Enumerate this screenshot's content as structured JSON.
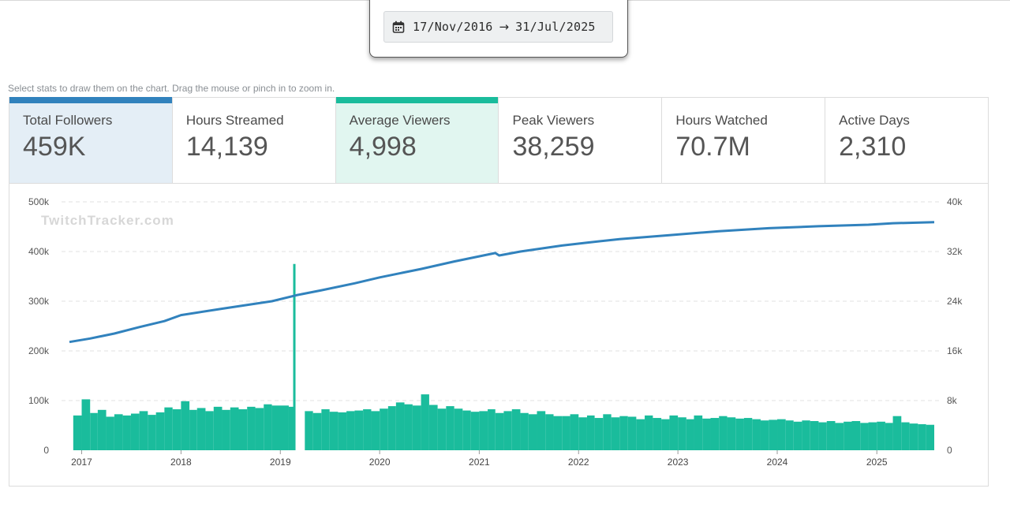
{
  "date_range": {
    "start": "17/Nov/2016",
    "arrow": "→",
    "end": "31/Jul/2025"
  },
  "hint": "Select stats to draw them on the chart. Drag the mouse or pinch in to zoom in.",
  "stats": [
    {
      "label": "Total Followers",
      "value": "459K",
      "selected": true,
      "color": "#3182bd"
    },
    {
      "label": "Hours Streamed",
      "value": "14,139",
      "selected": false
    },
    {
      "label": "Average Viewers",
      "value": "4,998",
      "selected": true,
      "color": "#1abc9c"
    },
    {
      "label": "Peak Viewers",
      "value": "38,259",
      "selected": false
    },
    {
      "label": "Hours Watched",
      "value": "70.7M",
      "selected": false
    },
    {
      "label": "Active Days",
      "value": "2,310",
      "selected": false
    }
  ],
  "watermark": "TwitchTracker.com",
  "chart_data": {
    "type": "line+bar",
    "x_range": [
      "2016-11-17",
      "2025-07-31"
    ],
    "x_ticks": [
      "2017",
      "2018",
      "2019",
      "2020",
      "2021",
      "2022",
      "2023",
      "2024",
      "2025"
    ],
    "y_left": {
      "ticks": [
        "0",
        "100k",
        "200k",
        "300k",
        "400k",
        "500k"
      ],
      "range": [
        0,
        500000
      ]
    },
    "y_right": {
      "ticks": [
        "0",
        "8k",
        "16k",
        "24k",
        "32k",
        "40k"
      ],
      "range": [
        0,
        40000
      ]
    },
    "grid": true,
    "series": [
      {
        "name": "Total Followers",
        "type": "line",
        "axis": "left",
        "color": "#3182bd",
        "points": [
          [
            "2016-11-17",
            218000
          ],
          [
            "2017-02-01",
            225000
          ],
          [
            "2017-05-01",
            235000
          ],
          [
            "2017-08-01",
            248000
          ],
          [
            "2017-11-01",
            260000
          ],
          [
            "2018-01-01",
            272000
          ],
          [
            "2018-06-01",
            285000
          ],
          [
            "2018-12-01",
            300000
          ],
          [
            "2019-03-01",
            312000
          ],
          [
            "2019-06-01",
            322000
          ],
          [
            "2019-10-01",
            336000
          ],
          [
            "2020-01-01",
            348000
          ],
          [
            "2020-06-01",
            365000
          ],
          [
            "2020-10-01",
            380000
          ],
          [
            "2021-03-01",
            397000
          ],
          [
            "2021-03-15",
            392000
          ],
          [
            "2021-06-01",
            400000
          ],
          [
            "2021-11-01",
            412000
          ],
          [
            "2022-02-01",
            418000
          ],
          [
            "2022-06-01",
            425000
          ],
          [
            "2022-12-01",
            433000
          ],
          [
            "2023-06-01",
            441000
          ],
          [
            "2023-12-01",
            447000
          ],
          [
            "2024-06-01",
            451000
          ],
          [
            "2024-12-01",
            454000
          ],
          [
            "2025-03-01",
            457000
          ],
          [
            "2025-07-31",
            459000
          ]
        ]
      },
      {
        "name": "Average Viewers",
        "type": "bar",
        "axis": "right",
        "color": "#1abc9c",
        "points": [
          [
            "2016-12-01",
            5600
          ],
          [
            "2017-01-01",
            8200
          ],
          [
            "2017-02-01",
            6000
          ],
          [
            "2017-03-01",
            6500
          ],
          [
            "2017-04-01",
            5400
          ],
          [
            "2017-05-01",
            5800
          ],
          [
            "2017-06-01",
            5600
          ],
          [
            "2017-07-01",
            5900
          ],
          [
            "2017-08-01",
            6300
          ],
          [
            "2017-09-01",
            5700
          ],
          [
            "2017-10-01",
            6100
          ],
          [
            "2017-11-01",
            6900
          ],
          [
            "2017-12-01",
            6600
          ],
          [
            "2018-01-01",
            7900
          ],
          [
            "2018-02-01",
            6500
          ],
          [
            "2018-03-01",
            6800
          ],
          [
            "2018-04-01",
            6300
          ],
          [
            "2018-05-01",
            7000
          ],
          [
            "2018-06-01",
            6500
          ],
          [
            "2018-07-01",
            6900
          ],
          [
            "2018-08-01",
            6600
          ],
          [
            "2018-09-01",
            7000
          ],
          [
            "2018-10-01",
            6800
          ],
          [
            "2018-11-01",
            7400
          ],
          [
            "2018-12-01",
            7200
          ],
          [
            "2019-02-01",
            7000
          ],
          [
            "2019-02-20",
            30000
          ],
          [
            "2019-04-01",
            6300
          ],
          [
            "2019-05-01",
            6000
          ],
          [
            "2019-06-01",
            6600
          ],
          [
            "2019-07-01",
            6200
          ],
          [
            "2019-08-01",
            6100
          ],
          [
            "2019-09-01",
            6300
          ],
          [
            "2019-10-01",
            6400
          ],
          [
            "2019-11-01",
            6600
          ],
          [
            "2019-12-01",
            6300
          ],
          [
            "2020-01-01",
            6700
          ],
          [
            "2020-02-01",
            7100
          ],
          [
            "2020-03-01",
            7700
          ],
          [
            "2020-04-01",
            7400
          ],
          [
            "2020-05-01",
            7200
          ],
          [
            "2020-06-01",
            9000
          ],
          [
            "2020-07-01",
            7300
          ],
          [
            "2020-08-01",
            6700
          ],
          [
            "2020-09-01",
            7100
          ],
          [
            "2020-10-01",
            6700
          ],
          [
            "2020-11-01",
            6400
          ],
          [
            "2020-12-01",
            6200
          ],
          [
            "2021-01-01",
            6300
          ],
          [
            "2021-02-01",
            6600
          ],
          [
            "2021-03-01",
            6000
          ],
          [
            "2021-04-01",
            6300
          ],
          [
            "2021-05-01",
            6600
          ],
          [
            "2021-06-01",
            6000
          ],
          [
            "2021-07-01",
            5800
          ],
          [
            "2021-08-01",
            6300
          ],
          [
            "2021-09-01",
            5800
          ],
          [
            "2021-10-01",
            5500
          ],
          [
            "2021-11-01",
            5500
          ],
          [
            "2021-12-01",
            5800
          ],
          [
            "2022-01-01",
            5300
          ],
          [
            "2022-02-01",
            5600
          ],
          [
            "2022-03-01",
            5200
          ],
          [
            "2022-04-01",
            5800
          ],
          [
            "2022-05-01",
            5300
          ],
          [
            "2022-06-01",
            5500
          ],
          [
            "2022-07-01",
            5400
          ],
          [
            "2022-08-01",
            5000
          ],
          [
            "2022-09-01",
            5600
          ],
          [
            "2022-10-01",
            5200
          ],
          [
            "2022-11-01",
            5000
          ],
          [
            "2022-12-01",
            5600
          ],
          [
            "2023-01-01",
            5300
          ],
          [
            "2023-02-01",
            5000
          ],
          [
            "2023-03-01",
            5600
          ],
          [
            "2023-04-01",
            5100
          ],
          [
            "2023-05-01",
            5200
          ],
          [
            "2023-06-01",
            5500
          ],
          [
            "2023-07-01",
            5300
          ],
          [
            "2023-08-01",
            5100
          ],
          [
            "2023-09-01",
            5200
          ],
          [
            "2023-10-01",
            5000
          ],
          [
            "2023-11-01",
            4800
          ],
          [
            "2023-12-01",
            4900
          ],
          [
            "2024-01-01",
            5000
          ],
          [
            "2024-02-01",
            4800
          ],
          [
            "2024-03-01",
            4600
          ],
          [
            "2024-04-01",
            4800
          ],
          [
            "2024-05-01",
            4700
          ],
          [
            "2024-06-01",
            4500
          ],
          [
            "2024-07-01",
            4700
          ],
          [
            "2024-08-01",
            4400
          ],
          [
            "2024-09-01",
            4600
          ],
          [
            "2024-10-01",
            4700
          ],
          [
            "2024-11-01",
            4400
          ],
          [
            "2024-12-01",
            4500
          ],
          [
            "2025-01-01",
            4600
          ],
          [
            "2025-02-01",
            4400
          ],
          [
            "2025-03-01",
            5500
          ],
          [
            "2025-04-01",
            4500
          ],
          [
            "2025-05-01",
            4300
          ],
          [
            "2025-06-01",
            4200
          ],
          [
            "2025-07-01",
            4100
          ]
        ]
      }
    ]
  }
}
